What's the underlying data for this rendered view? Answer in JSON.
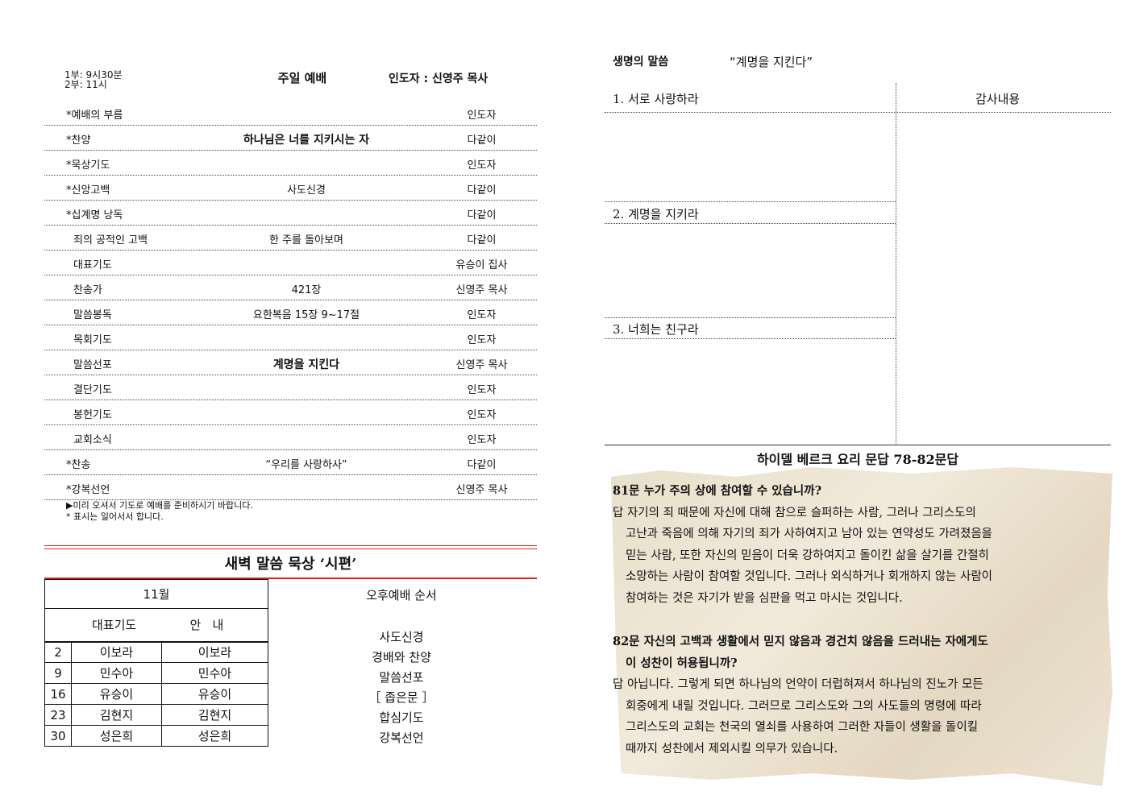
{
  "service": {
    "times": [
      "1부: 9시30분",
      "2부: 11시"
    ],
    "title": "주일 예배",
    "leader": "인도자 : 신영주 목사",
    "rows": [
      {
        "item": "*예배의 부름",
        "content": "",
        "by": "인도자"
      },
      {
        "item": "*찬양",
        "content": "하나님은 너를 지키시는 자",
        "by": "다같이",
        "bold": true
      },
      {
        "item": "*묵상기도",
        "content": "",
        "by": "인도자"
      },
      {
        "item": "*신앙고백",
        "content": "사도신경",
        "by": "다같이"
      },
      {
        "item": "*십계명 낭독",
        "content": "",
        "by": "다같이"
      },
      {
        "item": "죄의 공적인 고백",
        "content": "한 주를 돌아보며",
        "by": "다같이"
      },
      {
        "item": "대표기도",
        "content": "",
        "by": "유승이 집사"
      },
      {
        "item": "찬송가",
        "content": "421장",
        "by": "신영주 목사"
      },
      {
        "item": "말씀봉독",
        "content": "요한복음 15장 9~17절",
        "by": "인도자"
      },
      {
        "item": "목회기도",
        "content": "",
        "by": "인도자"
      },
      {
        "item": "말씀선포",
        "content": "계명을 지킨다",
        "by": "신영주 목사",
        "bold": true
      },
      {
        "item": "결단기도",
        "content": "",
        "by": "인도자"
      },
      {
        "item": "봉헌기도",
        "content": "",
        "by": "인도자"
      },
      {
        "item": "교회소식",
        "content": "",
        "by": "인도자"
      },
      {
        "item": "*찬송",
        "content": "“우리를 사랑하사”",
        "by": "다같이"
      },
      {
        "item": "*강복선언",
        "content": "",
        "by": "신영주 목사"
      }
    ],
    "notes": [
      "▶미리 오셔서 기도로 예배를 준비하시기 바랍니다.",
      "* 표시는 일어서서 합니다."
    ]
  },
  "dawn": {
    "title": "새벽 말씀 묵상 ‘시편’",
    "month": "11월",
    "col_prayer": "대표기도",
    "col_guide": "안   내",
    "rows": [
      {
        "day": "2",
        "prayer": "이보라",
        "guide": "이보라"
      },
      {
        "day": "9",
        "prayer": "민수아",
        "guide": "민수아"
      },
      {
        "day": "16",
        "prayer": "유승이",
        "guide": "유승이"
      },
      {
        "day": "23",
        "prayer": "김현지",
        "guide": "김현지"
      },
      {
        "day": "30",
        "prayer": "성은희",
        "guide": "성은희"
      }
    ]
  },
  "afternoon": {
    "title": "오후예배 순서",
    "items": [
      "사도신경",
      "경배와 찬양",
      "말씀선포",
      "［ 좁은문 ］",
      "합심기도",
      "강복선언"
    ]
  },
  "sermon_notes": {
    "heading": "생명의 말씀",
    "quote": "“계명을 지킨다”",
    "points": [
      "1. 서로 사랑하라",
      "2. 계명을 지키라",
      "3. 너희는 친구라"
    ],
    "thanks": "감사내용"
  },
  "catechism": {
    "title": "하이델 베르크 요리 문답 78-82문답",
    "q81": "81문 누가 주의 상에 참여할 수 있습니까?",
    "a81": [
      "답 자기의 죄 때문에 자신에 대해 참으로 슬퍼하는 사람, 그러나 그리스도의",
      "고난과 죽음에 의해 자기의 죄가 사하여지고 남아 있는 연약성도 가려졌음을",
      "믿는 사람, 또한 자신의 믿음이 더욱 강하여지고 돌이킨 삶을 살기를 간절히",
      "소망하는 사람이 참여할 것입니다. 그러나 외식하거나 회개하지 않는 사람이",
      "참여하는 것은 자기가 받을 심판을 먹고 마시는 것입니다."
    ],
    "q82": [
      "82문 자신의 고백과 생활에서 믿지 않음과 경건치 않음을 드러내는 자에게도",
      "이 성찬이 허용됩니까?"
    ],
    "a82": [
      "답 아닙니다. 그렇게 되면 하나님의 언약이 더럽혀져서 하나님의 진노가 모든",
      "회중에게 내릴 것입니다. 그러므로 그리스도와 그의 사도들의 명령에 따라",
      "그리스도의 교회는 천국의 열쇠를 사용하여 그러한 자들이 생활을 돌이킬",
      "때까지 성찬에서 제외시킬 의무가 있습니다."
    ]
  }
}
